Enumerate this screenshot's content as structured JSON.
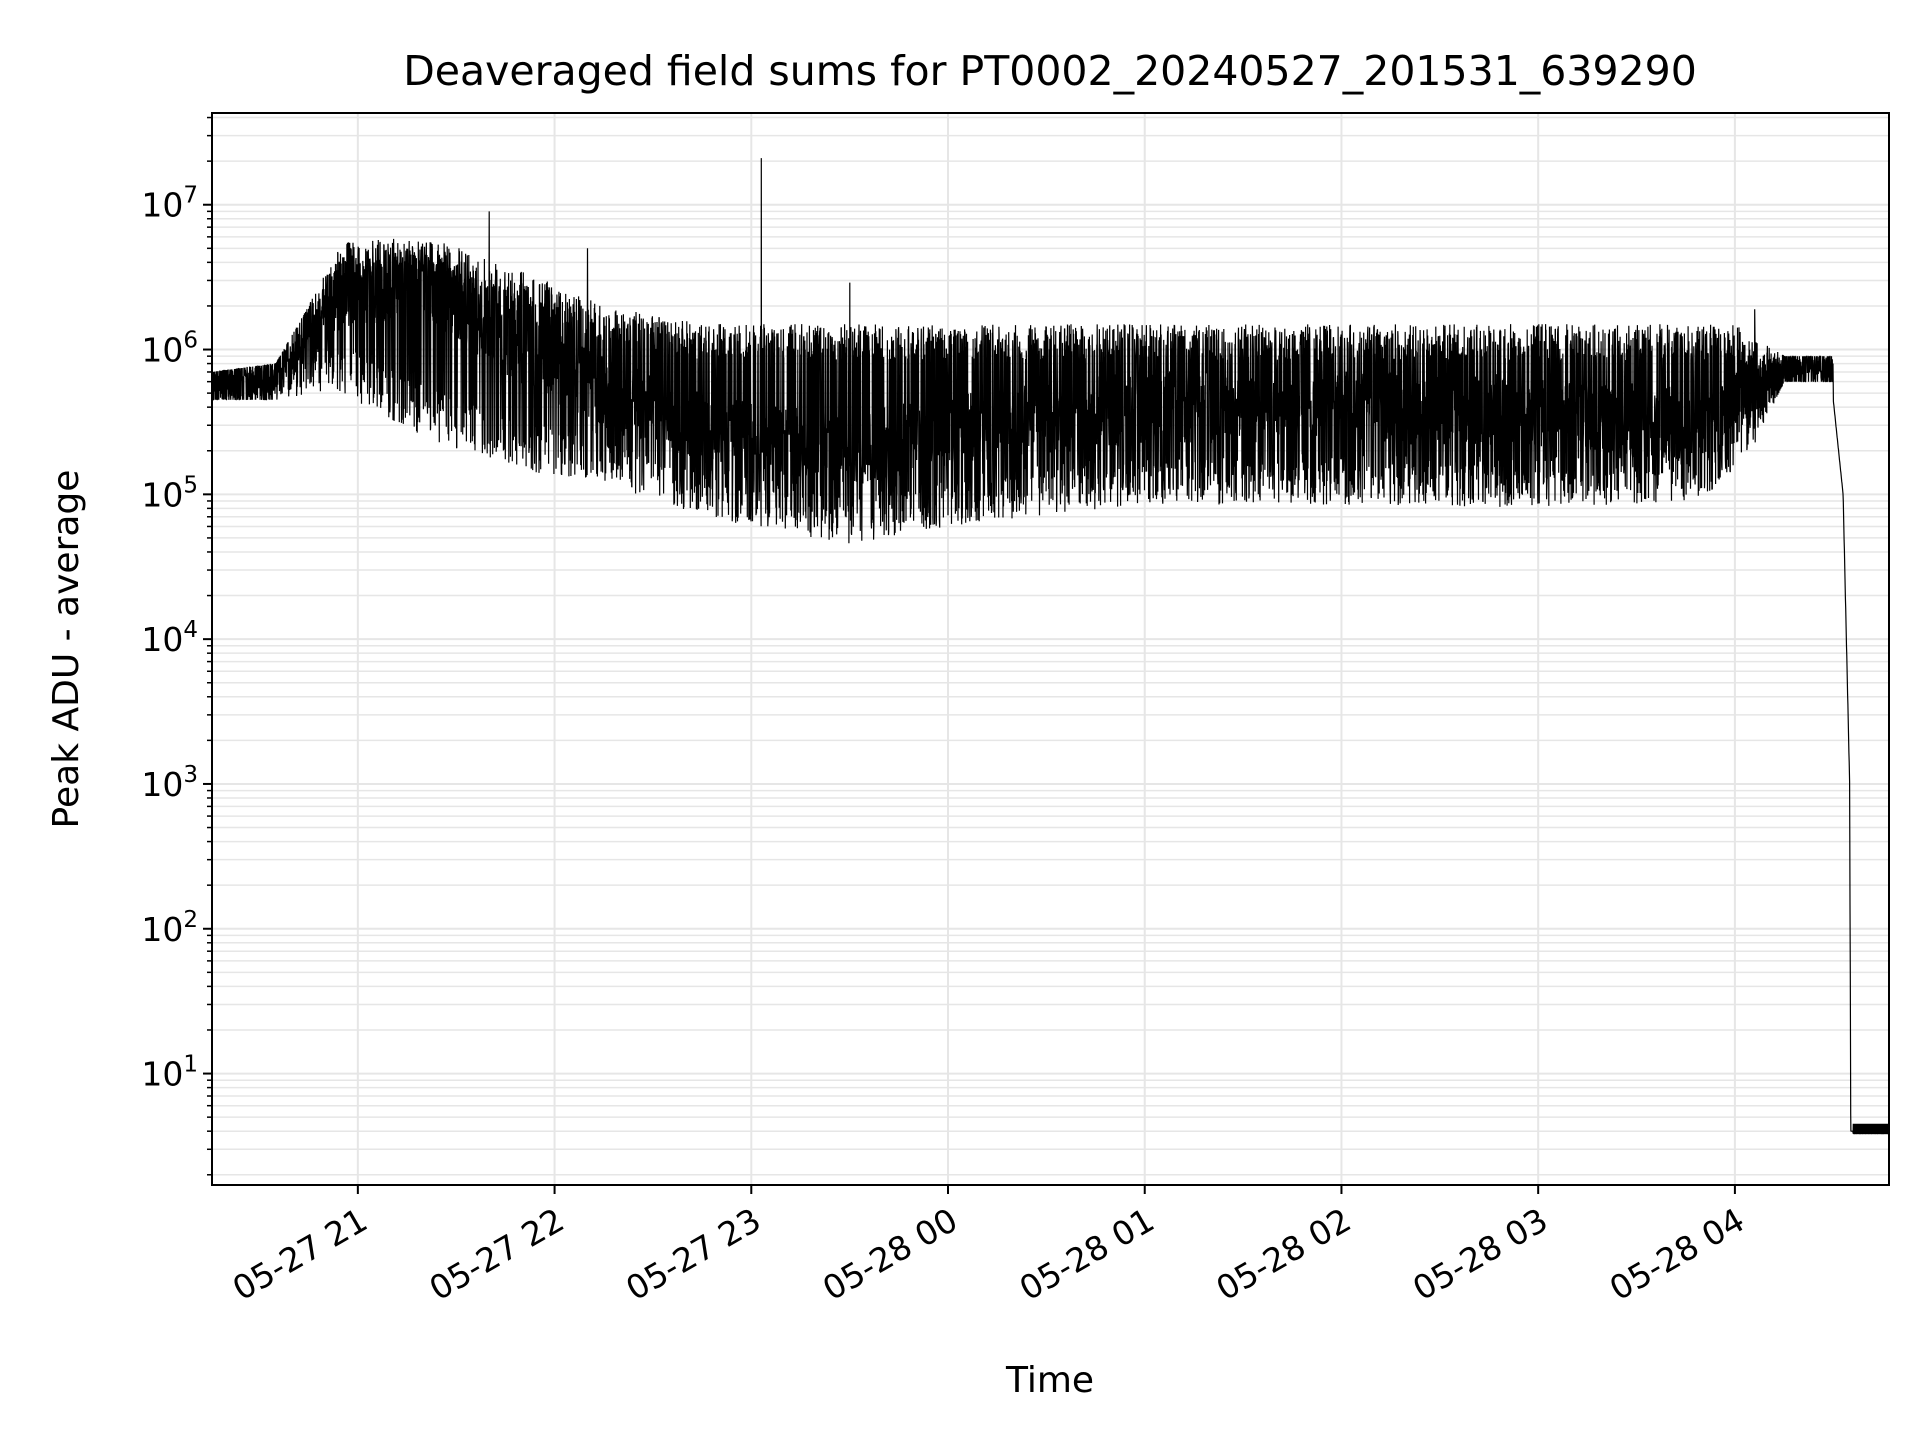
{
  "chart_data": {
    "type": "line",
    "title": "Deaveraged field sums for PT0002_20240527_201531_639290",
    "xlabel": "Time",
    "ylabel": "Peak ADU - average",
    "x_scale": "time",
    "y_scale": "log",
    "xlim": [
      "2024-05-27 20:15:31",
      "2024-05-28 04:47:00"
    ],
    "ylim": [
      1.7,
      43000000
    ],
    "grid": true,
    "line_color": "#000000",
    "grid_color": "#e6e6e6",
    "x_ticks": [
      {
        "t": "2024-05-27 21:00",
        "label": "05-27 21"
      },
      {
        "t": "2024-05-27 22:00",
        "label": "05-27 22"
      },
      {
        "t": "2024-05-27 23:00",
        "label": "05-27 23"
      },
      {
        "t": "2024-05-28 00:00",
        "label": "05-28 00"
      },
      {
        "t": "2024-05-28 01:00",
        "label": "05-28 01"
      },
      {
        "t": "2024-05-28 02:00",
        "label": "05-28 02"
      },
      {
        "t": "2024-05-28 03:00",
        "label": "05-28 03"
      },
      {
        "t": "2024-05-28 04:00",
        "label": "05-28 04"
      }
    ],
    "y_ticks": [
      {
        "value": 10,
        "base": "10",
        "exp": "1"
      },
      {
        "value": 100,
        "base": "10",
        "exp": "2"
      },
      {
        "value": 1000,
        "base": "10",
        "exp": "3"
      },
      {
        "value": 10000,
        "base": "10",
        "exp": "4"
      },
      {
        "value": 100000,
        "base": "10",
        "exp": "5"
      },
      {
        "value": 1000000,
        "base": "10",
        "exp": "6"
      },
      {
        "value": 10000000,
        "base": "10",
        "exp": "7"
      }
    ],
    "series": [
      {
        "trend": [
          [
            "2024-05-27 20:15:31",
            600000
          ],
          [
            "2024-05-27 20:30",
            550000
          ],
          [
            "2024-05-27 20:40",
            1000000
          ],
          [
            "2024-05-27 20:55",
            2500000
          ],
          [
            "2024-05-27 21:20",
            3000000
          ],
          [
            "2024-05-27 21:45",
            1200000
          ],
          [
            "2024-05-27 22:15",
            500000
          ],
          [
            "2024-05-27 22:45",
            300000
          ],
          [
            "2024-05-27 23:00",
            250000
          ],
          [
            "2024-05-27 23:30",
            200000
          ],
          [
            "2024-05-28 00:00",
            280000
          ],
          [
            "2024-05-28 01:00",
            400000
          ],
          [
            "2024-05-28 02:00",
            400000
          ],
          [
            "2024-05-28 03:00",
            380000
          ],
          [
            "2024-05-28 03:50",
            300000
          ],
          [
            "2024-05-28 04:05",
            450000
          ],
          [
            "2024-05-28 04:15",
            750000
          ],
          [
            "2024-05-28 04:25",
            700000
          ],
          [
            "2024-05-28 04:30",
            450000
          ],
          [
            "2024-05-28 04:33",
            100000
          ],
          [
            "2024-05-28 04:34",
            10000
          ],
          [
            "2024-05-28 04:35",
            1000
          ],
          [
            "2024-05-28 04:35:20",
            4
          ],
          [
            "2024-05-28 04:47",
            4
          ]
        ],
        "upper": [
          [
            "2024-05-27 20:15:31",
            700000
          ],
          [
            "2024-05-27 20:35",
            800000
          ],
          [
            "2024-05-27 20:45",
            2000000
          ],
          [
            "2024-05-27 20:55",
            5500000
          ],
          [
            "2024-05-27 21:20",
            6000000
          ],
          [
            "2024-05-27 21:45",
            4000000
          ],
          [
            "2024-05-27 22:15",
            2000000
          ],
          [
            "2024-05-27 22:45",
            1500000
          ],
          [
            "2024-05-28 04:00",
            1500000
          ],
          [
            "2024-05-28 04:15",
            900000
          ]
        ],
        "lower": [
          [
            "2024-05-27 20:15:31",
            450000
          ],
          [
            "2024-05-27 20:35",
            450000
          ],
          [
            "2024-05-27 20:55",
            500000
          ],
          [
            "2024-05-27 21:20",
            250000
          ],
          [
            "2024-05-27 21:45",
            150000
          ],
          [
            "2024-05-27 22:15",
            120000
          ],
          [
            "2024-05-27 22:45",
            70000
          ],
          [
            "2024-05-27 23:30",
            45000
          ],
          [
            "2024-05-28 00:00",
            60000
          ],
          [
            "2024-05-28 01:00",
            85000
          ],
          [
            "2024-05-28 02:00",
            85000
          ],
          [
            "2024-05-28 03:00",
            80000
          ],
          [
            "2024-05-28 03:50",
            90000
          ],
          [
            "2024-05-28 04:05",
            200000
          ],
          [
            "2024-05-28 04:15",
            600000
          ]
        ],
        "spikes": [
          [
            "2024-05-27 21:40",
            9000000
          ],
          [
            "2024-05-27 22:10",
            5000000
          ],
          [
            "2024-05-27 23:03",
            21000000
          ],
          [
            "2024-05-27 23:30",
            2900000
          ],
          [
            "2024-05-28 04:06",
            1900000
          ]
        ]
      }
    ]
  }
}
